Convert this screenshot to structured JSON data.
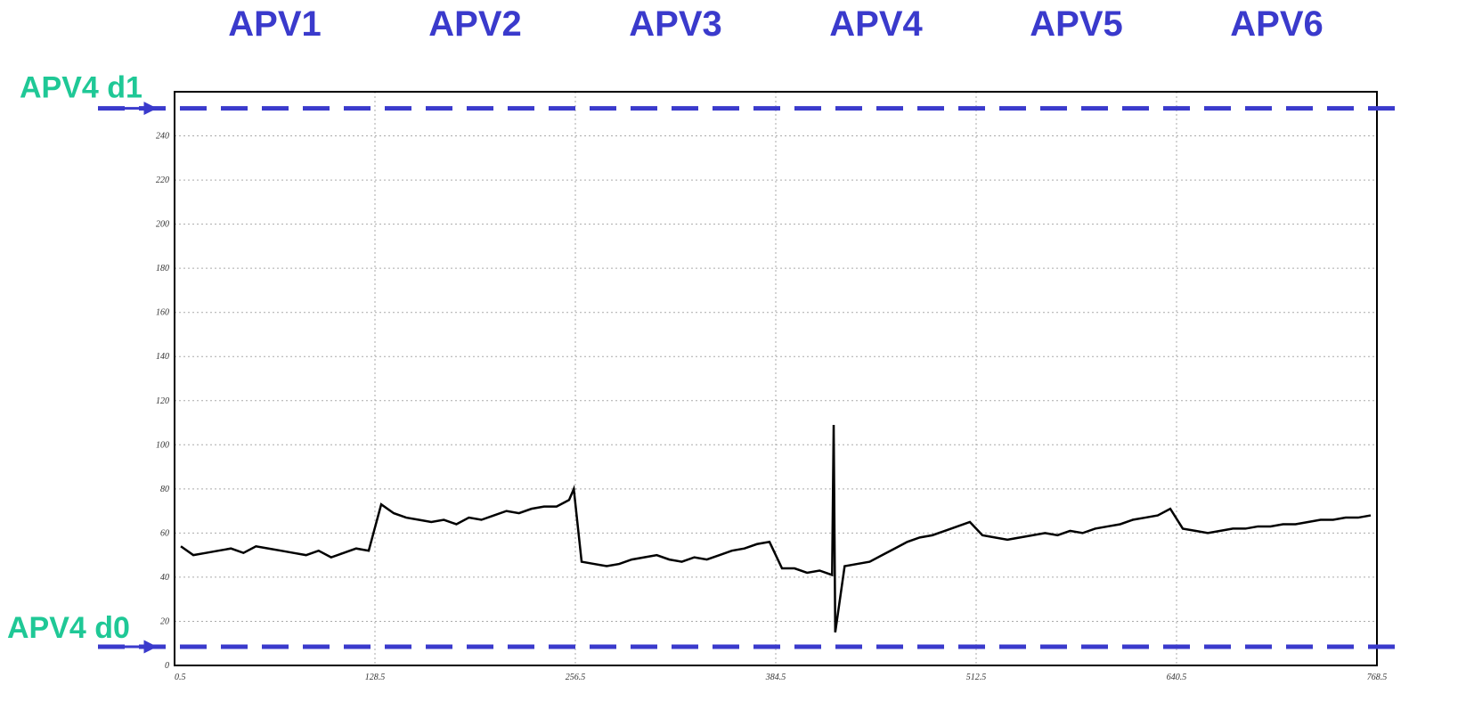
{
  "chart_data": {
    "type": "line",
    "annotations": [
      "APV1",
      "APV2",
      "APV3",
      "APV4",
      "APV5",
      "APV6"
    ],
    "reference_lines": [
      {
        "label": "APV4 d1",
        "value": 252.5
      },
      {
        "label": "APV4 d0",
        "value": 8.5
      }
    ],
    "xlim": [
      0.5,
      768.5
    ],
    "xticks": [
      0.5,
      128.5,
      256.5,
      384.5,
      512.5,
      640.5,
      768.5
    ],
    "ylim": [
      0,
      260
    ],
    "yticks": [
      0,
      20,
      40,
      60,
      80,
      100,
      120,
      140,
      160,
      180,
      200,
      220,
      240
    ],
    "grid": true,
    "series": [
      {
        "color": "#000000",
        "x": [
          4.5,
          12.5,
          20.5,
          28.5,
          36.5,
          44.5,
          52.5,
          60.5,
          68.5,
          76.5,
          84.5,
          92.5,
          100.5,
          108.5,
          116.5,
          124.5,
          132.5,
          140.5,
          148.5,
          156.5,
          164.5,
          172.5,
          180.5,
          188.5,
          196.5,
          204.5,
          212.5,
          220.5,
          228.5,
          236.5,
          244.5,
          252.5,
          255.5,
          260.5,
          268.5,
          276.5,
          284.5,
          292.5,
          300.5,
          308.5,
          316.5,
          324.5,
          332.5,
          340.5,
          348.5,
          356.5,
          364.5,
          372.5,
          380.5,
          388.5,
          396.5,
          404.5,
          412.5,
          420.5,
          421.5,
          422.5,
          428.5,
          436.5,
          444.5,
          452.5,
          460.5,
          468.5,
          476.5,
          484.5,
          492.5,
          500.5,
          508.5,
          516.5,
          524.5,
          532.5,
          540.5,
          548.5,
          556.5,
          564.5,
          572.5,
          580.5,
          588.5,
          596.5,
          604.5,
          612.5,
          620.5,
          628.5,
          636.5,
          644.5,
          652.5,
          660.5,
          668.5,
          676.5,
          684.5,
          692.5,
          700.5,
          708.5,
          716.5,
          724.5,
          732.5,
          740.5,
          748.5,
          756.5,
          764.5
        ],
        "values": [
          54,
          50,
          51,
          52,
          53,
          51,
          54,
          53,
          52,
          51,
          50,
          52,
          49,
          51,
          53,
          52,
          73,
          69,
          67,
          66,
          65,
          66,
          64,
          67,
          66,
          68,
          70,
          69,
          71,
          72,
          72,
          75,
          80,
          47,
          46,
          45,
          46,
          48,
          49,
          50,
          48,
          47,
          49,
          48,
          50,
          52,
          53,
          55,
          56,
          44,
          44,
          42,
          43,
          41,
          109,
          15,
          45,
          46,
          47,
          50,
          53,
          56,
          58,
          59,
          61,
          63,
          65,
          59,
          58,
          57,
          58,
          59,
          60,
          59,
          61,
          60,
          62,
          63,
          64,
          66,
          67,
          68,
          71,
          62,
          61,
          60,
          61,
          62,
          62,
          63,
          63,
          64,
          64,
          65,
          66,
          66,
          67,
          67,
          68
        ]
      }
    ]
  }
}
